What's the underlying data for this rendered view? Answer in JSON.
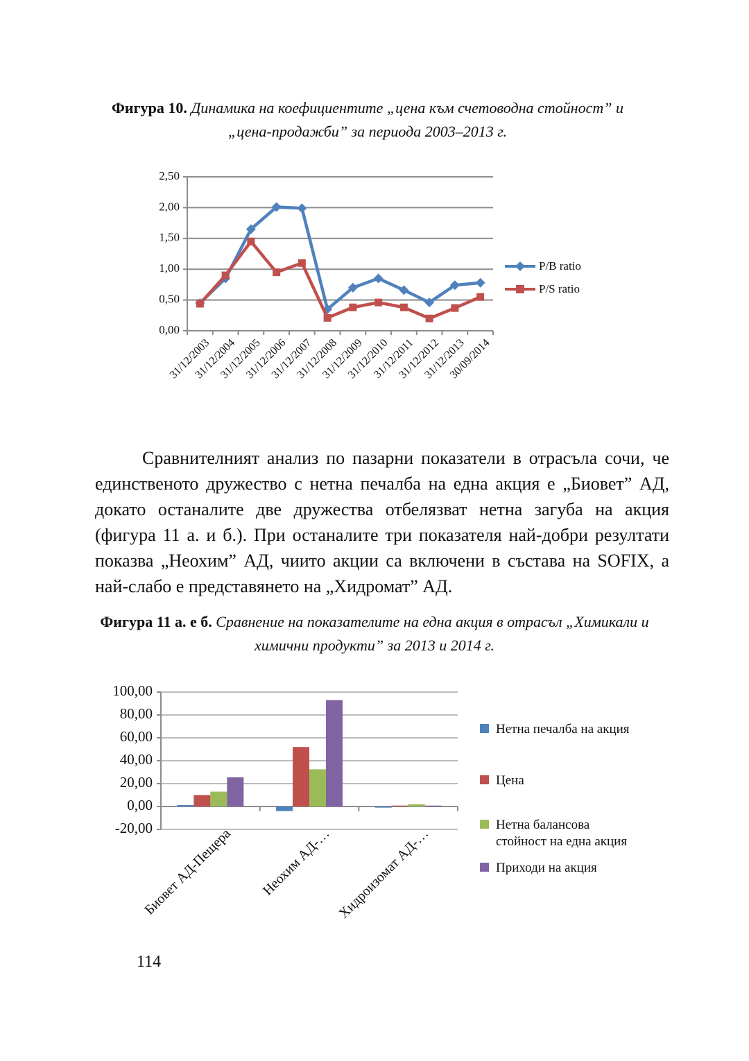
{
  "page": {
    "number": "114"
  },
  "figure10": {
    "caption_bold": "Фигура 10.",
    "caption_italic": "Динамика на коефициентите „цена към счетоводна стойност” и „цена-продажби” за периода 2003–2013 г."
  },
  "paragraph": "Сравнителният анализ по пазарни показатели в отрасъла сочи, че единственото дружество с нетна печалба на една акция е „Биовет” АД, докато останалите две дружества отбелязват нетна загуба на акция (фигура 11 а. и б.). При останалите три показателя най-добри резултати показва „Неохим” АД, чиито акции са включени в състава на SOFIX, а най-слабо е представянето на „Хидромат” АД.",
  "figure11": {
    "caption_bold": "Фигура 11 а. е б.",
    "caption_italic": "Сравнение на показателите на една акция в отрасъл „Химикали и химични продукти” за 2013 и 2014 г."
  },
  "chart_data": [
    {
      "type": "line",
      "title": "",
      "categories": [
        "31/12/2003",
        "31/12/2004",
        "31/12/2005",
        "31/12/2006",
        "31/12/2007",
        "31/12/2008",
        "31/12/2009",
        "31/12/2010",
        "31/12/2011",
        "31/12/2012",
        "31/12/2013",
        "30/09/2014"
      ],
      "series": [
        {
          "name": "P/B ratio",
          "color": "#4F81BD",
          "marker": "diamond",
          "values": [
            0.45,
            0.85,
            1.65,
            2.01,
            1.99,
            0.35,
            0.7,
            0.85,
            0.66,
            0.46,
            0.74,
            0.78
          ]
        },
        {
          "name": "P/S ratio",
          "color": "#C0504D",
          "marker": "square",
          "values": [
            0.44,
            0.9,
            1.45,
            0.95,
            1.1,
            0.21,
            0.38,
            0.46,
            0.38,
            0.2,
            0.37,
            0.55
          ]
        }
      ],
      "ylim": [
        0,
        2.5
      ],
      "ystep": 0.5,
      "ytick_labels": [
        "0,00",
        "0,50",
        "1,00",
        "1,50",
        "2,00",
        "2,50"
      ],
      "grid": true,
      "legend_position": "right"
    },
    {
      "type": "bar",
      "title": "",
      "categories": [
        "Биовет АД-Пещера",
        "Неохим АД-…",
        "Хидроизомат АД-…"
      ],
      "series": [
        {
          "name": "Нетна печалба на акция",
          "color": "#4F81BD",
          "values": [
            1.2,
            -4,
            -1
          ]
        },
        {
          "name": "Цена",
          "color": "#C0504D",
          "values": [
            10,
            52,
            0.8
          ]
        },
        {
          "name": "Нетна балансова стойност на една акция",
          "color": "#9BBB59",
          "values": [
            13,
            32.5,
            2
          ]
        },
        {
          "name": "Приходи на акция",
          "color": "#8064A2",
          "values": [
            25.5,
            93,
            0.8
          ]
        }
      ],
      "ylim": [
        -20,
        100
      ],
      "ystep": 20,
      "ytick_labels": [
        "-20,00",
        "0,00",
        "20,00",
        "40,00",
        "60,00",
        "80,00",
        "100,00"
      ],
      "grid": true,
      "legend_position": "right"
    }
  ]
}
